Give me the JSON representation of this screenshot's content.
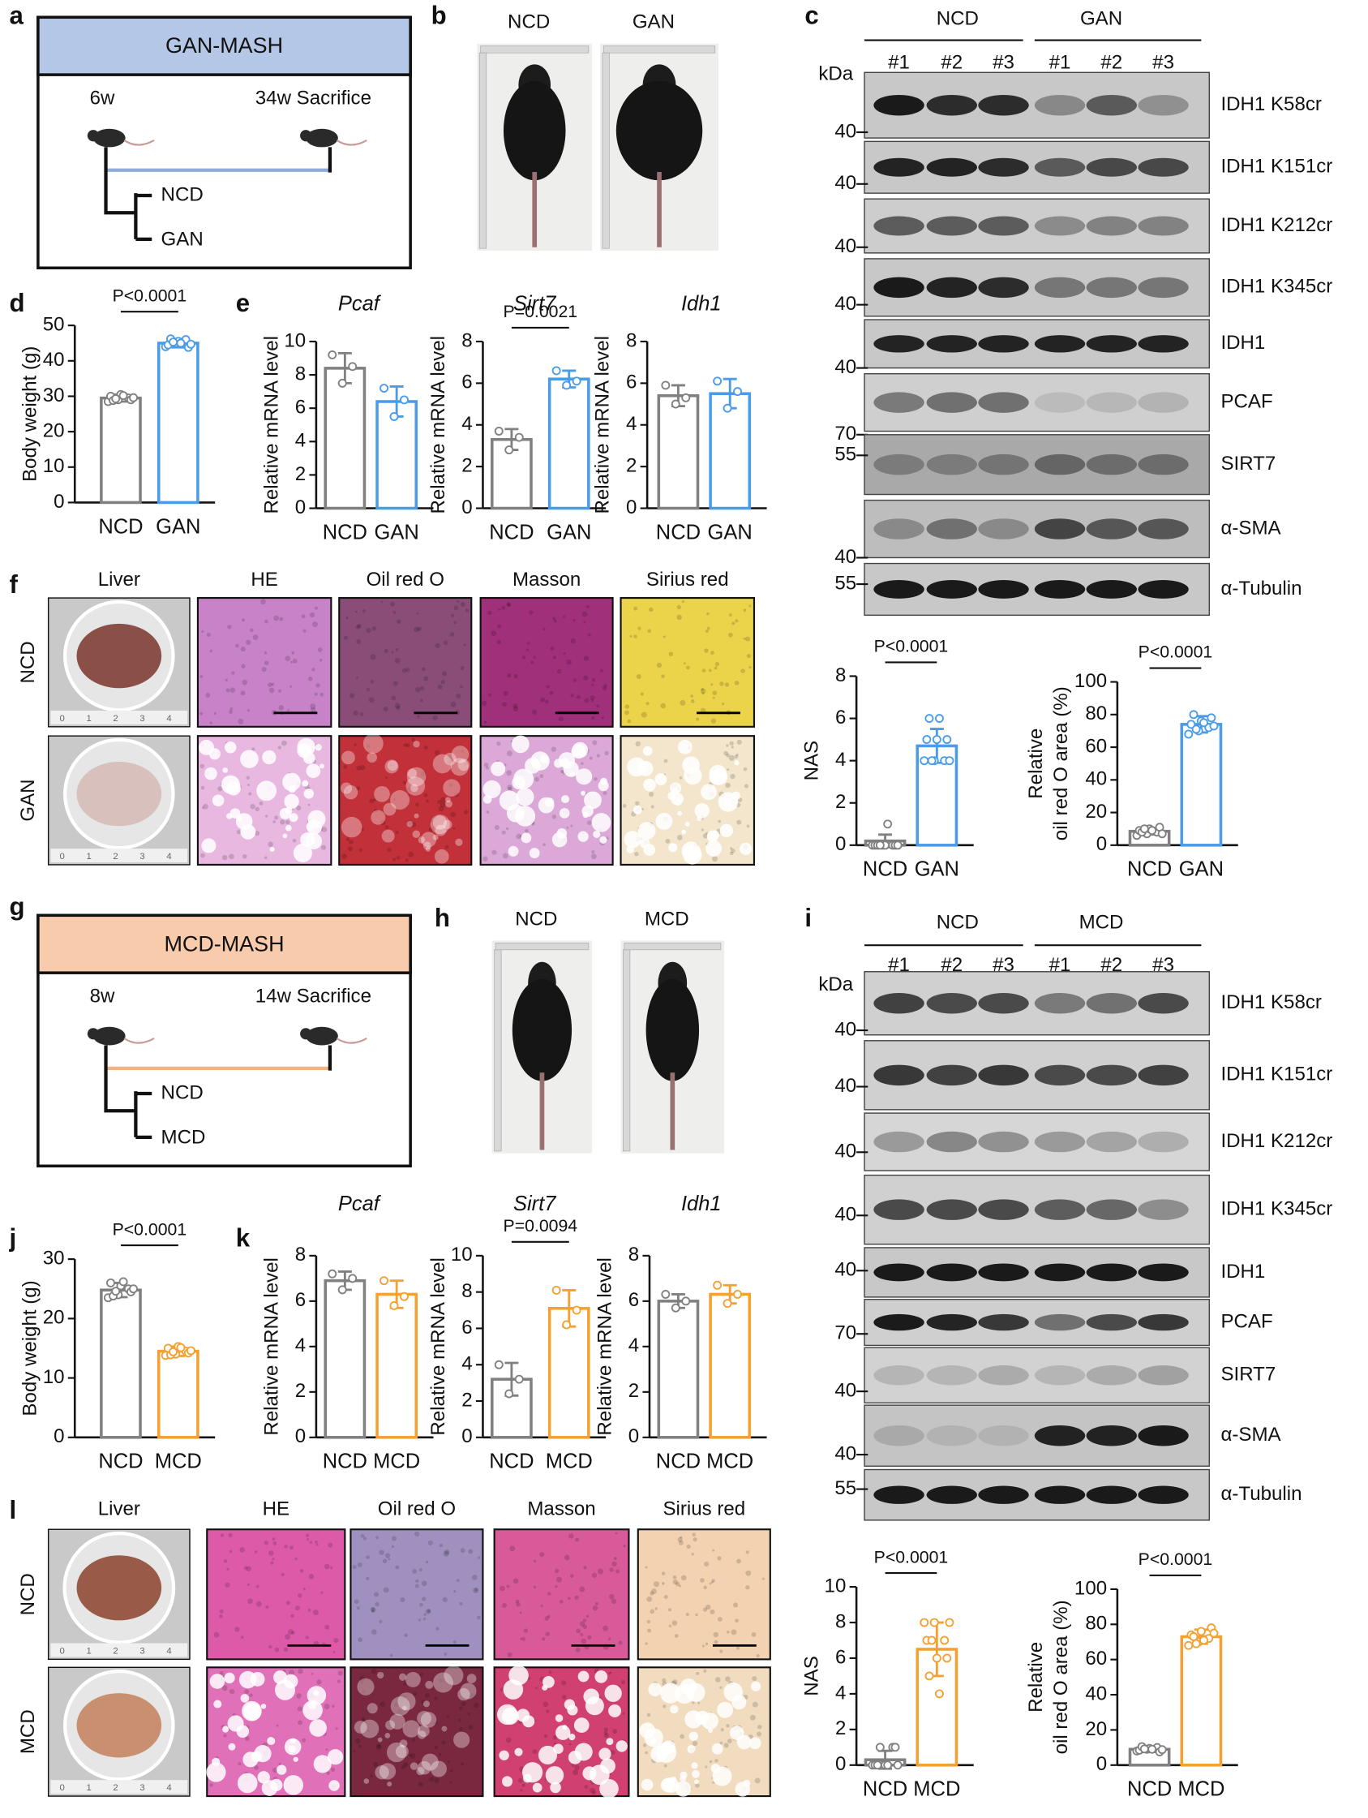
{
  "panels": {
    "letters": [
      "a",
      "b",
      "c",
      "d",
      "e",
      "f",
      "g",
      "h",
      "i",
      "j",
      "k",
      "l"
    ]
  },
  "schematics": [
    {
      "title": "GAN-MASH",
      "start": "6w",
      "end": "34w Sacrifice",
      "arms": [
        "NCD",
        "GAN"
      ]
    },
    {
      "title": "MCD-MASH",
      "start": "8w",
      "end": "14w Sacrifice",
      "arms": [
        "NCD",
        "MCD"
      ]
    }
  ],
  "photos": [
    {
      "labels": [
        "NCD",
        "GAN"
      ]
    },
    {
      "labels": [
        "NCD",
        "MCD"
      ]
    }
  ],
  "blots": [
    {
      "groups": [
        "NCD",
        "GAN"
      ],
      "lanes": [
        "#1",
        "#2",
        "#3",
        "#1",
        "#2",
        "#3"
      ],
      "unit": "kDa",
      "rows": [
        {
          "label": "IDH1 K58cr",
          "marker": 40
        },
        {
          "label": "IDH1 K151cr",
          "marker": 40
        },
        {
          "label": "IDH1 K212cr",
          "marker": 40
        },
        {
          "label": "IDH1 K345cr",
          "marker": 40
        },
        {
          "label": "IDH1",
          "marker": 40
        },
        {
          "label": "PCAF",
          "marker": 70
        },
        {
          "label": "SIRT7",
          "marker": 55
        },
        {
          "label": "α-SMA",
          "marker": 40
        },
        {
          "label": "α-Tubulin",
          "marker": 55
        }
      ]
    },
    {
      "groups": [
        "NCD",
        "MCD"
      ],
      "lanes": [
        "#1",
        "#2",
        "#3",
        "#1",
        "#2",
        "#3"
      ],
      "unit": "kDa",
      "rows": [
        {
          "label": "IDH1 K58cr",
          "marker": 40
        },
        {
          "label": "IDH1 K151cr",
          "marker": 40
        },
        {
          "label": "IDH1 K212cr",
          "marker": 40
        },
        {
          "label": "IDH1 K345cr",
          "marker": 40
        },
        {
          "label": "IDH1",
          "marker": 40
        },
        {
          "label": "PCAF",
          "marker": 70
        },
        {
          "label": "SIRT7",
          "marker": 40
        },
        {
          "label": "α-SMA",
          "marker": 40
        },
        {
          "label": "α-Tubulin",
          "marker": 55
        }
      ]
    }
  ],
  "histology": [
    {
      "columns": [
        "Liver",
        "HE",
        "Oil red O",
        "Masson",
        "Sirius red"
      ],
      "rows": [
        "NCD",
        "GAN"
      ],
      "ruler_labels": [
        "0",
        "1",
        "2",
        "3",
        "4"
      ]
    },
    {
      "columns": [
        "Liver",
        "HE",
        "Oil red O",
        "Masson",
        "Sirius red"
      ],
      "rows": [
        "NCD",
        "MCD"
      ],
      "ruler_labels": [
        "0",
        "1",
        "2",
        "3",
        "4"
      ]
    }
  ],
  "chart_data": [
    {
      "type": "bar",
      "y_label": "Body weight (g)",
      "categories": [
        "NCD",
        "GAN"
      ],
      "colors": [
        "#808080",
        "#4a9be8"
      ],
      "values": [
        29.5,
        45
      ],
      "errors": [
        1,
        1.2
      ],
      "points": [
        [
          28.5,
          29,
          29.5,
          30,
          30.5,
          29,
          28.8,
          30.2,
          29.6,
          29.3
        ],
        [
          44,
          45,
          46,
          44.5,
          45.5,
          43.8,
          46.2,
          45,
          44.7,
          45.3
        ]
      ],
      "ylim": [
        0,
        50
      ],
      "yticks": [
        0,
        10,
        20,
        30,
        40,
        50
      ],
      "annotation": "P<0.0001"
    },
    {
      "type": "bar",
      "title": "Pcaf",
      "y_label": "Relative mRNA level",
      "categories": [
        "NCD",
        "GAN"
      ],
      "colors": [
        "#808080",
        "#4a9be8"
      ],
      "values": [
        8.4,
        6.4
      ],
      "errors": [
        0.9,
        0.9
      ],
      "points": [
        [
          9.2,
          7.5,
          8.5
        ],
        [
          7.2,
          5.5,
          6.5
        ]
      ],
      "ylim": [
        0,
        10
      ],
      "yticks": [
        0,
        2,
        4,
        6,
        8,
        10
      ]
    },
    {
      "type": "bar",
      "title": "Sirt7",
      "y_label": "Relative mRNA level",
      "categories": [
        "NCD",
        "GAN"
      ],
      "colors": [
        "#808080",
        "#4a9be8"
      ],
      "values": [
        3.3,
        6.2
      ],
      "errors": [
        0.5,
        0.4
      ],
      "points": [
        [
          3.7,
          2.8,
          3.4
        ],
        [
          6.6,
          5.9,
          6.1
        ]
      ],
      "ylim": [
        0,
        8
      ],
      "yticks": [
        0,
        2,
        4,
        6,
        8
      ],
      "annotation": "P=0.0021"
    },
    {
      "type": "bar",
      "title": "Idh1",
      "y_label": "Relative mRNA level",
      "categories": [
        "NCD",
        "GAN"
      ],
      "colors": [
        "#808080",
        "#4a9be8"
      ],
      "values": [
        5.4,
        5.5
      ],
      "errors": [
        0.5,
        0.7
      ],
      "points": [
        [
          5.9,
          5,
          5.3
        ],
        [
          6.1,
          4.8,
          5.6
        ]
      ],
      "ylim": [
        0,
        8
      ],
      "yticks": [
        0,
        2,
        4,
        6,
        8
      ]
    },
    {
      "type": "bar",
      "y_label": "NAS",
      "categories": [
        "NCD",
        "GAN"
      ],
      "colors": [
        "#808080",
        "#4a9be8"
      ],
      "values": [
        0.2,
        4.7
      ],
      "errors": [
        0.3,
        0.8
      ],
      "points": [
        [
          0,
          0,
          0,
          0,
          0,
          0,
          0,
          1,
          0,
          0
        ],
        [
          4,
          4,
          4,
          5,
          5,
          5,
          6,
          6,
          4,
          4
        ]
      ],
      "ylim": [
        0,
        8
      ],
      "yticks": [
        0,
        2,
        4,
        6,
        8
      ],
      "annotation": "P<0.0001"
    },
    {
      "type": "bar",
      "y_label": [
        "Relative",
        "oil red O area (%)"
      ],
      "categories": [
        "NCD",
        "GAN"
      ],
      "colors": [
        "#808080",
        "#4a9be8"
      ],
      "values": [
        8.5,
        74
      ],
      "errors": [
        2,
        5
      ],
      "points": [
        [
          6,
          7,
          8,
          9,
          10,
          11,
          8,
          9,
          7,
          10
        ],
        [
          68,
          70,
          72,
          74,
          76,
          78,
          80,
          75,
          73,
          71
        ]
      ],
      "ylim": [
        0,
        100
      ],
      "yticks": [
        0,
        20,
        40,
        60,
        80,
        100
      ],
      "annotation": "P<0.0001"
    },
    {
      "type": "bar",
      "y_label": "Body weight (g)",
      "categories": [
        "NCD",
        "MCD"
      ],
      "colors": [
        "#808080",
        "#f5a030"
      ],
      "values": [
        24.8,
        14.5
      ],
      "errors": [
        1.2,
        0.8
      ],
      "points": [
        [
          23.5,
          24,
          25,
          26,
          25.5,
          24.5,
          23.8,
          26.2,
          25,
          24.6
        ],
        [
          13.8,
          14,
          14.5,
          15,
          15.3,
          14.2,
          13.9,
          15.1,
          14.6,
          14.4
        ]
      ],
      "ylim": [
        0,
        30
      ],
      "yticks": [
        0,
        10,
        20,
        30
      ],
      "annotation": "P<0.0001"
    },
    {
      "type": "bar",
      "title": "Pcaf",
      "y_label": "Relative mRNA level",
      "categories": [
        "NCD",
        "MCD"
      ],
      "colors": [
        "#808080",
        "#f5a030"
      ],
      "values": [
        6.9,
        6.3
      ],
      "errors": [
        0.4,
        0.6
      ],
      "points": [
        [
          7.2,
          6.5,
          7
        ],
        [
          6.9,
          5.8,
          6.2
        ]
      ],
      "ylim": [
        0,
        8
      ],
      "yticks": [
        0,
        2,
        4,
        6,
        8
      ]
    },
    {
      "type": "bar",
      "title": "Sirt7",
      "y_label": "Relative mRNA level",
      "categories": [
        "NCD",
        "MCD"
      ],
      "colors": [
        "#808080",
        "#f5a030"
      ],
      "values": [
        3.2,
        7.1
      ],
      "errors": [
        0.9,
        1
      ],
      "points": [
        [
          4,
          2.4,
          3.2
        ],
        [
          8.1,
          6.2,
          7
        ]
      ],
      "ylim": [
        0,
        10
      ],
      "yticks": [
        0,
        2,
        4,
        6,
        8,
        10
      ],
      "annotation": "P=0.0094"
    },
    {
      "type": "bar",
      "title": "Idh1",
      "y_label": "Relative mRNA level",
      "categories": [
        "NCD",
        "MCD"
      ],
      "colors": [
        "#808080",
        "#f5a030"
      ],
      "values": [
        6,
        6.3
      ],
      "errors": [
        0.3,
        0.4
      ],
      "points": [
        [
          6.3,
          5.7,
          6
        ],
        [
          6.7,
          5.9,
          6.3
        ]
      ],
      "ylim": [
        0,
        8
      ],
      "yticks": [
        0,
        2,
        4,
        6,
        8
      ]
    },
    {
      "type": "bar",
      "y_label": "NAS",
      "categories": [
        "NCD",
        "MCD"
      ],
      "colors": [
        "#808080",
        "#f5a030"
      ],
      "values": [
        0.3,
        6.5
      ],
      "errors": [
        0.5,
        1.5
      ],
      "points": [
        [
          0,
          0,
          1,
          0,
          0,
          1,
          0,
          0,
          0,
          1
        ],
        [
          8,
          8,
          7,
          7,
          6,
          6,
          5,
          4,
          8,
          7
        ]
      ],
      "ylim": [
        0,
        10
      ],
      "yticks": [
        0,
        2,
        4,
        6,
        8,
        10
      ],
      "annotation": "P<0.0001"
    },
    {
      "type": "bar",
      "y_label": [
        "Relative",
        "oil red O area (%)"
      ],
      "categories": [
        "NCD",
        "MCD"
      ],
      "colors": [
        "#808080",
        "#f5a030"
      ],
      "values": [
        9,
        73
      ],
      "errors": [
        1.5,
        4
      ],
      "points": [
        [
          8,
          9,
          10,
          8.5,
          9.5,
          7.5,
          10.5,
          9,
          8.8,
          9.2
        ],
        [
          68,
          70,
          72,
          74,
          76,
          78,
          73,
          71,
          75,
          69
        ]
      ],
      "ylim": [
        0,
        100
      ],
      "yticks": [
        0,
        20,
        40,
        60,
        80,
        100
      ],
      "annotation": "P<0.0001"
    }
  ]
}
